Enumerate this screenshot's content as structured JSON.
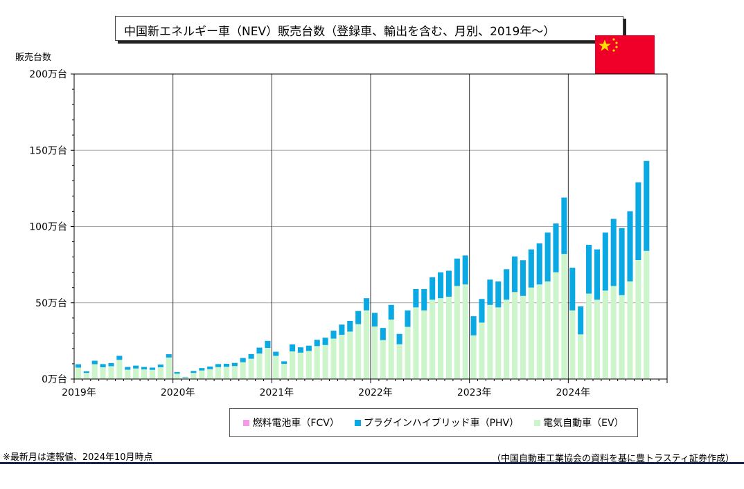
{
  "page": {
    "title": "中国新エネルギー車（NEV）販売台数（登録車、輸出を含む、月別、2019年～）",
    "footnote": "※最新月は速報値、2024年10月時点",
    "source": "（中国自動車工業協会の資料を基に豊トラスティ証券作成）"
  },
  "flag": {
    "country": "China",
    "icon": "china-flag-icon",
    "colors": {
      "red": "#f00028",
      "star": "#ffde00"
    }
  },
  "chart_data": {
    "type": "bar",
    "stacked": true,
    "title": "中国新エネルギー車（NEV）販売台数（登録車、輸出を含む、月別、2019年～）",
    "ylabel": "販売台数",
    "ylim": [
      0,
      200
    ],
    "unit": "万台",
    "yticks": [
      "0万台",
      "50万台",
      "100万台",
      "150万台",
      "200万台"
    ],
    "ytick_values": [
      0,
      50,
      100,
      150,
      200
    ],
    "year_labels": [
      "2019年",
      "2020年",
      "2021年",
      "2022年",
      "2023年",
      "2024年"
    ],
    "grid": true,
    "legend_position": "bottom",
    "legend": [
      "燃料電池車（FCV）",
      "プラグインハイブリッド車（PHV）",
      "電気自動車（EV）"
    ],
    "colors": {
      "EV": "#ccf5cc",
      "PHV": "#0ba9e3",
      "FCV": "#f49ae8"
    },
    "x": [
      "2019-01",
      "2019-02",
      "2019-03",
      "2019-04",
      "2019-05",
      "2019-06",
      "2019-07",
      "2019-08",
      "2019-09",
      "2019-10",
      "2019-11",
      "2019-12",
      "2020-01",
      "2020-02",
      "2020-03",
      "2020-04",
      "2020-05",
      "2020-06",
      "2020-07",
      "2020-08",
      "2020-09",
      "2020-10",
      "2020-11",
      "2020-12",
      "2021-01",
      "2021-02",
      "2021-03",
      "2021-04",
      "2021-05",
      "2021-06",
      "2021-07",
      "2021-08",
      "2021-09",
      "2021-10",
      "2021-11",
      "2021-12",
      "2022-01",
      "2022-02",
      "2022-03",
      "2022-04",
      "2022-05",
      "2022-06",
      "2022-07",
      "2022-08",
      "2022-09",
      "2022-10",
      "2022-11",
      "2022-12",
      "2023-01",
      "2023-02",
      "2023-03",
      "2023-04",
      "2023-05",
      "2023-06",
      "2023-07",
      "2023-08",
      "2023-09",
      "2023-10",
      "2023-11",
      "2023-12",
      "2024-01",
      "2024-02",
      "2024-03",
      "2024-04",
      "2024-05",
      "2024-06",
      "2024-07",
      "2024-08",
      "2024-09",
      "2024-10"
    ],
    "series": [
      {
        "name": "電気自動車（EV）",
        "key": "EV",
        "values": [
          7.5,
          4.0,
          9.7,
          7.7,
          8.4,
          12.6,
          6.1,
          6.9,
          6.3,
          6.0,
          7.7,
          14.1,
          3.5,
          1.1,
          4.0,
          5.6,
          6.4,
          7.8,
          8.0,
          8.5,
          11.0,
          13.3,
          16.7,
          20.4,
          15.2,
          9.9,
          18.1,
          17.3,
          18.4,
          21.6,
          22.3,
          26.5,
          29.0,
          31.1,
          36.0,
          45.0,
          34.4,
          25.5,
          39.0,
          22.8,
          34.2,
          47.0,
          45.0,
          52.0,
          53.0,
          54.0,
          61.0,
          62.0,
          28.6,
          37.0,
          48.6,
          47.0,
          52.0,
          57.0,
          54.5,
          60.0,
          62.0,
          64.0,
          70.0,
          82.0,
          45.0,
          29.3,
          56.0,
          52.0,
          58.0,
          61.0,
          55.0,
          64.0,
          78.0,
          84.0
        ]
      },
      {
        "name": "プラグインハイブリッド車（PHV）",
        "key": "PHV",
        "values": [
          2.2,
          1.1,
          2.3,
          2.1,
          2.1,
          2.6,
          1.8,
          1.9,
          1.6,
          1.5,
          1.8,
          2.2,
          1.1,
          0.3,
          1.3,
          1.6,
          1.8,
          2.0,
          2.0,
          2.1,
          2.8,
          3.1,
          3.9,
          4.6,
          2.7,
          1.7,
          4.6,
          3.5,
          3.5,
          4.1,
          4.8,
          5.2,
          6.7,
          7.0,
          8.6,
          8.0,
          9.0,
          8.0,
          9.6,
          6.8,
          10.8,
          12.0,
          14.0,
          14.7,
          17.0,
          17.0,
          18.0,
          19.0,
          12.6,
          15.5,
          16.6,
          17.0,
          20.0,
          23.4,
          23.4,
          25.0,
          27.0,
          32.0,
          32.0,
          37.0,
          28.0,
          18.3,
          32.0,
          33.0,
          38.0,
          44.0,
          44.0,
          46.0,
          51.0,
          59.0
        ]
      },
      {
        "name": "燃料電池車（FCV）",
        "key": "FCV",
        "values": [
          0.02,
          0.01,
          0.03,
          0.01,
          0.01,
          0.04,
          0.01,
          0.02,
          0.01,
          0.01,
          0.03,
          0.04,
          0.0,
          0.0,
          0.0,
          0.0,
          0.01,
          0.01,
          0.01,
          0.01,
          0.01,
          0.01,
          0.01,
          0.04,
          0.01,
          0.01,
          0.02,
          0.02,
          0.01,
          0.02,
          0.02,
          0.01,
          0.02,
          0.02,
          0.02,
          0.04,
          0.01,
          0.01,
          0.03,
          0.01,
          0.03,
          0.04,
          0.03,
          0.03,
          0.05,
          0.04,
          0.05,
          0.06,
          0.01,
          0.02,
          0.04,
          0.03,
          0.05,
          0.07,
          0.05,
          0.06,
          0.07,
          0.05,
          0.05,
          0.07,
          0.02,
          0.01,
          0.03,
          0.04,
          0.05,
          0.06,
          0.05,
          0.06,
          0.07,
          0.07
        ]
      }
    ]
  }
}
